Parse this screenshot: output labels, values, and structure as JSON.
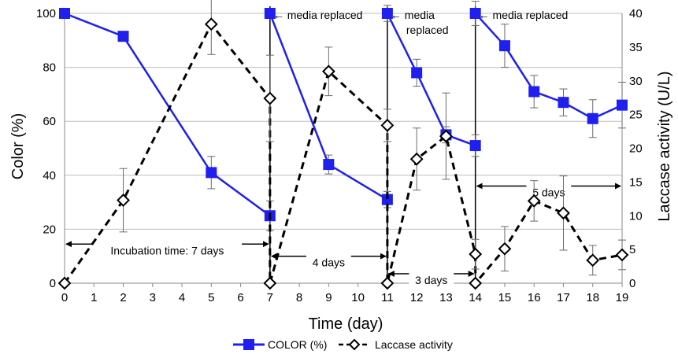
{
  "chart_data": {
    "type": "line",
    "xlabel": "Time (day)",
    "ylabel_left": "Color (%)",
    "ylabel_right": "Laccase activity (U/L)",
    "xlim": [
      0,
      19
    ],
    "ylim_left": [
      0,
      100
    ],
    "ylim_right": [
      0,
      40
    ],
    "x_ticks": [
      0,
      1,
      2,
      3,
      4,
      5,
      6,
      7,
      8,
      9,
      10,
      11,
      12,
      13,
      14,
      15,
      16,
      17,
      18,
      19
    ],
    "y_left_ticks": [
      0,
      20,
      40,
      60,
      80,
      100
    ],
    "y_right_ticks": [
      0,
      5,
      10,
      15,
      20,
      25,
      30,
      35,
      40
    ],
    "grid": "horizontal",
    "legend_position": "bottom",
    "series": [
      {
        "name": "COLOR (%)",
        "axis": "left",
        "color": "#1f1ff0",
        "marker": "square",
        "line_style": "solid",
        "segments": [
          [
            {
              "x": 0,
              "y": 100,
              "err": 0
            },
            {
              "x": 2,
              "y": 91.5,
              "err": 0
            },
            {
              "x": 5,
              "y": 41,
              "err": 6
            },
            {
              "x": 7,
              "y": 25,
              "err": 5.5
            }
          ],
          [
            {
              "x": 7,
              "y": 100,
              "err": 0
            },
            {
              "x": 9,
              "y": 44,
              "err": 3.5
            },
            {
              "x": 11,
              "y": 31,
              "err": 3
            }
          ],
          [
            {
              "x": 11,
              "y": 100,
              "err": 3
            },
            {
              "x": 12,
              "y": 78,
              "err": 5
            },
            {
              "x": 13,
              "y": 55,
              "err": 3
            },
            {
              "x": 14,
              "y": 51,
              "err": 4
            }
          ],
          [
            {
              "x": 14,
              "y": 100,
              "err": 4.5
            },
            {
              "x": 15,
              "y": 88,
              "err": 8
            },
            {
              "x": 16,
              "y": 71,
              "err": 6
            },
            {
              "x": 17,
              "y": 67,
              "err": 5
            },
            {
              "x": 18,
              "y": 61,
              "err": 7
            },
            {
              "x": 19,
              "y": 66,
              "err": 8.5
            }
          ]
        ]
      },
      {
        "name": "Laccase activity",
        "axis": "right",
        "color": "#000000",
        "marker": "diamond",
        "line_style": "dashed",
        "segments": [
          [
            {
              "x": 0,
              "y": 0,
              "err": 0
            },
            {
              "x": 2,
              "y": 12.3,
              "err": 4.7
            },
            {
              "x": 5,
              "y": 38.4,
              "err": 4.5
            },
            {
              "x": 7,
              "y": 27.4,
              "err": 6.4
            },
            {
              "x": 7,
              "y": 0,
              "err": 0
            },
            {
              "x": 9,
              "y": 31.4,
              "err": 3.6
            },
            {
              "x": 11,
              "y": 23.4,
              "err": 2.4
            },
            {
              "x": 11,
              "y": 0,
              "err": 0
            },
            {
              "x": 12,
              "y": 18.4,
              "err": 4.6
            },
            {
              "x": 13,
              "y": 21.8,
              "err": 6.4
            },
            {
              "x": 14,
              "y": 4.3,
              "err": 2.2
            },
            {
              "x": 14,
              "y": 0,
              "err": 0
            },
            {
              "x": 15,
              "y": 5.1,
              "err": 3.3
            },
            {
              "x": 16,
              "y": 12.2,
              "err": 3
            },
            {
              "x": 17,
              "y": 10.4,
              "err": 5.5
            },
            {
              "x": 18,
              "y": 3.4,
              "err": 2.2
            },
            {
              "x": 19,
              "y": 4.2,
              "err": 2.2
            }
          ]
        ]
      }
    ],
    "vertical_lines_x": [
      7,
      11,
      14
    ],
    "annotations": [
      {
        "id": "media-replaced-1",
        "lines": [
          "← media replaced"
        ],
        "x": 7
      },
      {
        "id": "media-replaced-2",
        "lines": [
          "← media",
          "replaced"
        ],
        "x": 11
      },
      {
        "id": "media-replaced-3",
        "lines": [
          "← media replaced"
        ],
        "x": 14
      }
    ],
    "spans": [
      {
        "id": "incubation-span",
        "label": "Incubation time: 7 days",
        "x_start": 0,
        "x_end": 7,
        "y": 14.5
      },
      {
        "id": "four-days-span",
        "label": "4 days",
        "x_start": 7,
        "x_end": 11,
        "y": 10
      },
      {
        "id": "three-days-span",
        "label": "3 days",
        "x_start": 11,
        "x_end": 14,
        "y": 3.5
      },
      {
        "id": "five-days-span",
        "label": "5 days",
        "x_start": 14,
        "x_end": 19,
        "y": 36
      }
    ]
  }
}
